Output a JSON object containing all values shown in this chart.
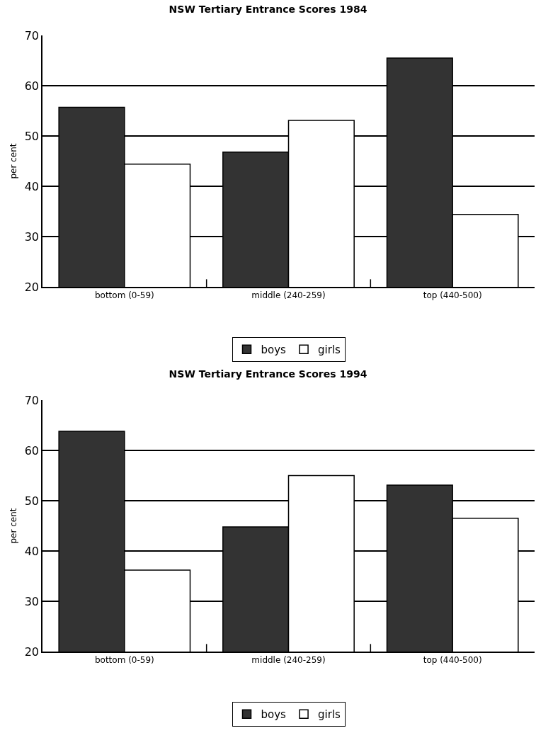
{
  "chart_data": [
    {
      "type": "bar",
      "title": "NSW Tertiary Entrance Scores 1984",
      "ylabel": "per cent",
      "categories": [
        "bottom (0-59)",
        "middle (240-259)",
        "top (440-500)"
      ],
      "series": [
        {
          "name": "boys",
          "color": "#333333",
          "values": [
            55.7,
            46.8,
            65.5
          ]
        },
        {
          "name": "girls",
          "color": "#ffffff",
          "values": [
            44.4,
            53.1,
            34.4
          ]
        }
      ],
      "ylim": [
        20,
        70
      ],
      "yticks": [
        20,
        30,
        40,
        50,
        60,
        70
      ],
      "grid": "y",
      "legend": "bottom"
    },
    {
      "type": "bar",
      "title": "NSW Tertiary Entrance Scores 1994",
      "ylabel": "per cent",
      "categories": [
        "bottom (0-59)",
        "middle (240-259)",
        "top (440-500)"
      ],
      "series": [
        {
          "name": "boys",
          "color": "#333333",
          "values": [
            63.8,
            44.8,
            53.1
          ]
        },
        {
          "name": "girls",
          "color": "#ffffff",
          "values": [
            36.2,
            55.0,
            46.5
          ]
        }
      ],
      "ylim": [
        20,
        70
      ],
      "yticks": [
        20,
        30,
        40,
        50,
        60,
        70
      ],
      "grid": "y",
      "legend": "bottom"
    }
  ]
}
